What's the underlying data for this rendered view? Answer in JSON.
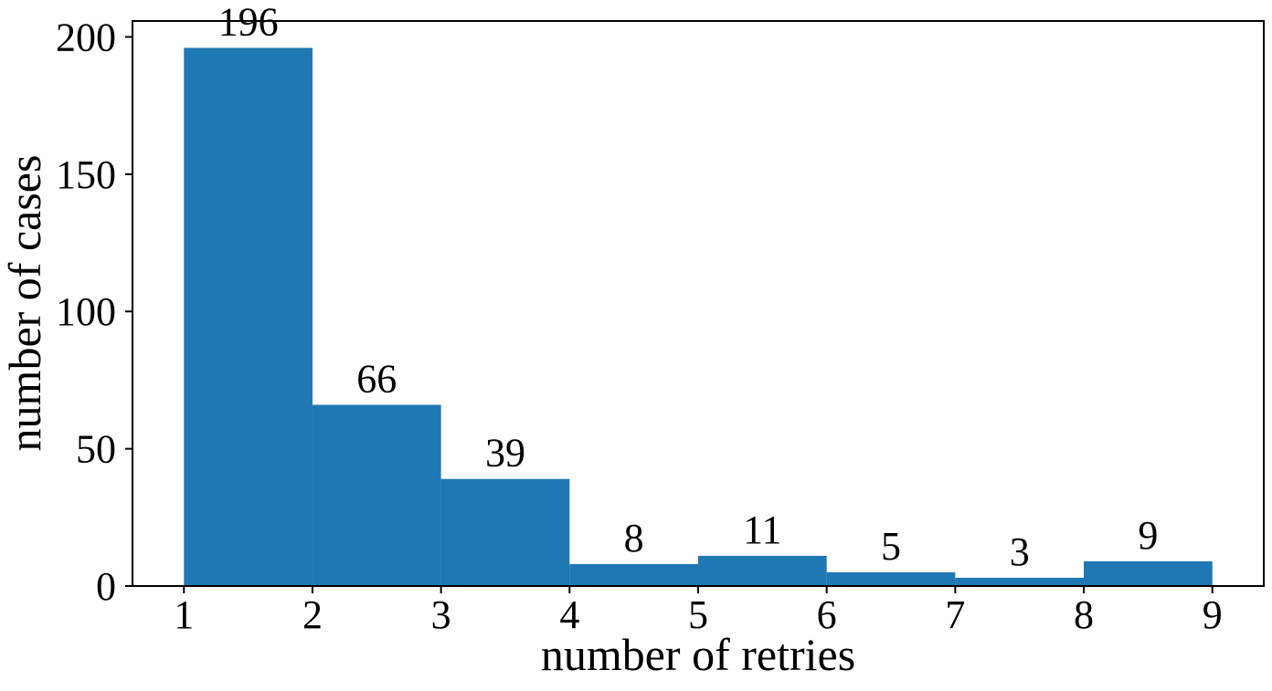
{
  "figure": {
    "background": "#ffffff"
  },
  "chart_data": {
    "type": "bar",
    "subtype": "histogram",
    "title": "",
    "xlabel": "number of retries",
    "ylabel": "number of cases",
    "bin_edges": [
      1,
      2,
      3,
      4,
      5,
      6,
      7,
      8,
      9
    ],
    "categories": [
      "1-2",
      "2-3",
      "3-4",
      "4-5",
      "5-6",
      "6-7",
      "7-8",
      "8-9"
    ],
    "values": [
      196,
      66,
      39,
      8,
      11,
      5,
      3,
      9
    ],
    "bar_value_labels": [
      "196",
      "66",
      "39",
      "8",
      "11",
      "5",
      "3",
      "9"
    ],
    "x_ticks": [
      1,
      2,
      3,
      4,
      5,
      6,
      7,
      8,
      9
    ],
    "y_ticks": [
      0,
      50,
      100,
      150,
      200
    ],
    "xlim": [
      0.6,
      9.4
    ],
    "ylim": [
      0,
      205.8
    ],
    "grid": false,
    "legend": "none",
    "bar_color": "#1f77b4",
    "axis_color": "#000000"
  }
}
